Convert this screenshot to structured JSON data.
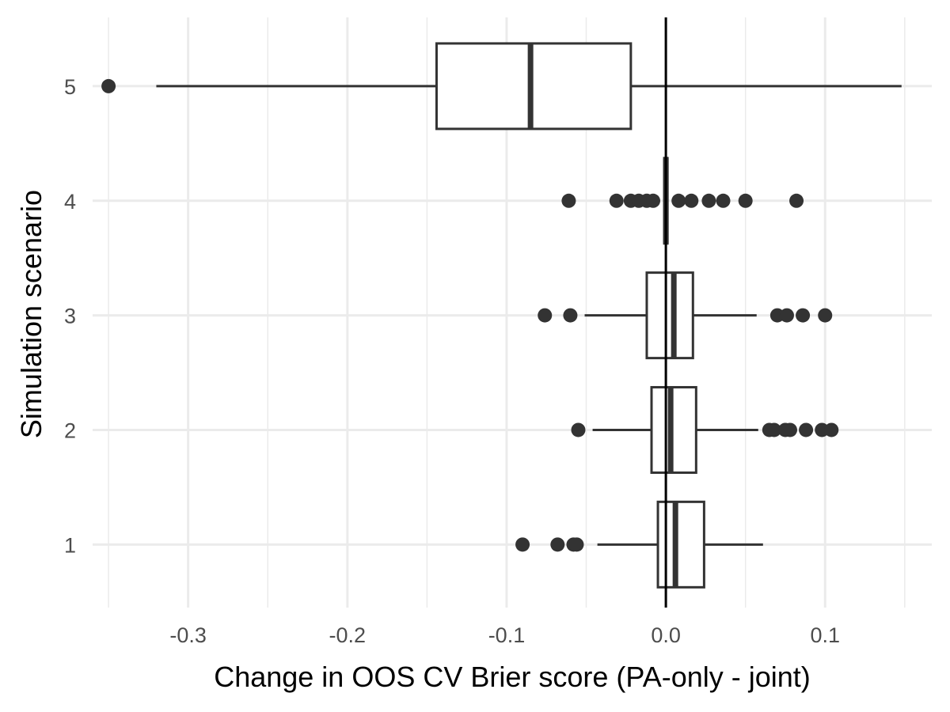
{
  "chart_data": {
    "type": "boxplot",
    "orientation": "horizontal",
    "title": "",
    "xlabel": "Change in OOS CV Brier score (PA-only - joint)",
    "ylabel": "Simulation scenario",
    "xlim": [
      -0.36,
      0.167
    ],
    "ylim": [
      0.45,
      5.6
    ],
    "x_ticks": [
      -0.3,
      -0.2,
      -0.1,
      0.0,
      0.1
    ],
    "x_tick_labels": [
      "-0.3",
      "-0.2",
      "-0.1",
      "0.0",
      "0.1"
    ],
    "y_ticks": [
      1,
      2,
      3,
      4,
      5
    ],
    "y_tick_labels": [
      "1",
      "2",
      "3",
      "4",
      "5"
    ],
    "grid": true,
    "reference_line": {
      "x": 0.0
    },
    "colors": {
      "box_stroke": "#333333",
      "box_fill": "#ffffff",
      "outlier": "#333333",
      "grid": "#ebebeb",
      "reference_line": "#000000"
    },
    "boxes": [
      {
        "category": "1",
        "whisker_low": -0.043,
        "q1": -0.005,
        "median": 0.006,
        "q3": 0.024,
        "whisker_high": 0.061,
        "outliers": [
          -0.09,
          -0.068,
          -0.058,
          -0.056
        ]
      },
      {
        "category": "2",
        "whisker_low": -0.046,
        "q1": -0.009,
        "median": 0.003,
        "q3": 0.019,
        "whisker_high": 0.058,
        "outliers": [
          -0.055,
          0.065,
          0.068,
          0.075,
          0.078,
          0.088,
          0.098,
          0.104
        ]
      },
      {
        "category": "3",
        "whisker_low": -0.051,
        "q1": -0.012,
        "median": 0.005,
        "q3": 0.017,
        "whisker_high": 0.057,
        "outliers": [
          -0.076,
          -0.06,
          0.07,
          0.076,
          0.086,
          0.1
        ]
      },
      {
        "category": "4",
        "whisker_low": -0.001,
        "q1": -0.001,
        "median": 0.0,
        "q3": 0.001,
        "whisker_high": 0.001,
        "outliers": [
          -0.061,
          -0.031,
          -0.022,
          -0.017,
          -0.012,
          -0.008,
          0.008,
          0.016,
          0.027,
          0.036,
          0.05,
          0.082
        ]
      },
      {
        "category": "5",
        "whisker_low": -0.32,
        "q1": -0.144,
        "median": -0.085,
        "q3": -0.022,
        "whisker_high": 0.148,
        "outliers": [
          -0.35
        ]
      }
    ]
  }
}
